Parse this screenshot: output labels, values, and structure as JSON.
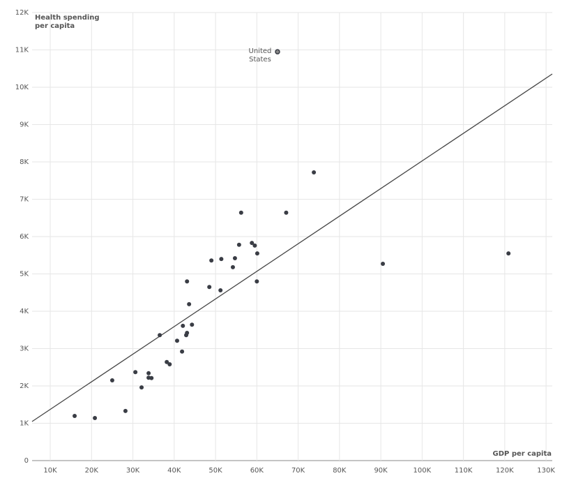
{
  "chart_data": {
    "type": "scatter",
    "y_label": "Health spending per capita",
    "x_label": "GDP per capita",
    "x": [
      15900,
      20800,
      25000,
      28200,
      30600,
      32100,
      33800,
      33800,
      34500,
      36500,
      38200,
      38900,
      40700,
      41900,
      42100,
      42900,
      43100,
      43100,
      43600,
      44300,
      48500,
      49000,
      51200,
      51400,
      54200,
      54700,
      55700,
      56200,
      58800,
      59500,
      60100,
      60000,
      67100,
      73800,
      90500,
      120900,
      65000
    ],
    "values": [
      1196,
      1140,
      2150,
      1330,
      2370,
      1960,
      2340,
      2220,
      2210,
      3360,
      2640,
      2580,
      3210,
      2920,
      3610,
      3360,
      3420,
      4800,
      4190,
      3640,
      4650,
      5360,
      4560,
      5400,
      5180,
      5420,
      5780,
      6640,
      5830,
      5760,
      5550,
      4800,
      6640,
      7720,
      5270,
      5550,
      10950
    ],
    "color": "#3a3d45",
    "annotations": [
      {
        "index": 36,
        "text": "United States"
      }
    ],
    "trendline": {
      "x": [
        5600,
        131500
      ],
      "values": [
        1047,
        10355
      ]
    },
    "xlim": [
      5600,
      131500
    ],
    "ylim": [
      0,
      12000
    ],
    "xticks": [
      {
        "value": 10000,
        "label": "10K"
      },
      {
        "value": 20000,
        "label": "20K"
      },
      {
        "value": 30000,
        "label": "30K"
      },
      {
        "value": 40000,
        "label": "40K"
      },
      {
        "value": 50000,
        "label": "50K"
      },
      {
        "value": 60000,
        "label": "60K"
      },
      {
        "value": 70000,
        "label": "70K"
      },
      {
        "value": 80000,
        "label": "80K"
      },
      {
        "value": 90000,
        "label": "90K"
      },
      {
        "value": 100000,
        "label": "100K"
      },
      {
        "value": 110000,
        "label": "110K"
      },
      {
        "value": 120000,
        "label": "120K"
      },
      {
        "value": 130000,
        "label": "130K"
      }
    ],
    "yticks": [
      0,
      {
        "value": 1000,
        "label": "1K"
      },
      {
        "value": 2000,
        "label": "2K"
      },
      {
        "value": 3000,
        "label": "3K"
      },
      {
        "value": 4000,
        "label": "4K"
      },
      {
        "value": 5000,
        "label": "5K"
      },
      {
        "value": 6000,
        "label": "6K"
      },
      {
        "value": 7000,
        "label": "7K"
      },
      {
        "value": 8000,
        "label": "8K"
      },
      {
        "value": 9000,
        "label": "9K"
      },
      {
        "value": 10000,
        "label": "10K"
      },
      {
        "value": 11000,
        "label": "11K"
      },
      {
        "value": 12000,
        "label": "12K"
      }
    ],
    "grid": true
  }
}
